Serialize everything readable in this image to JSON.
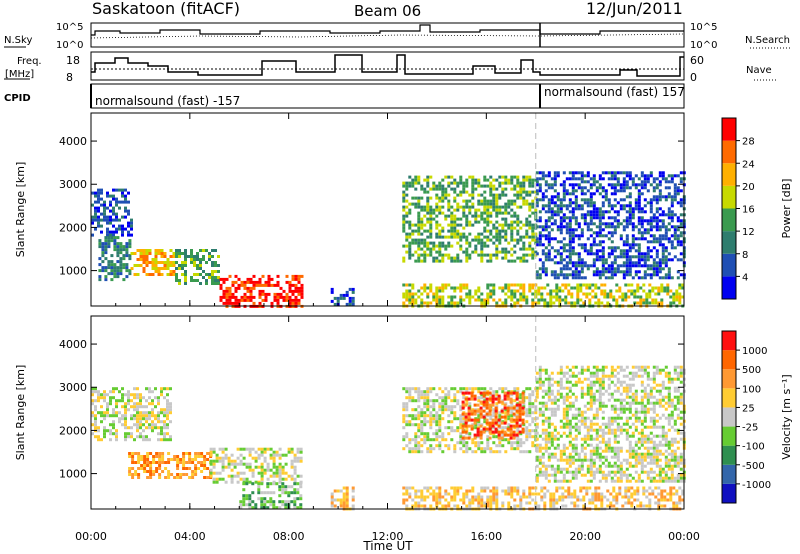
{
  "header": {
    "station": "Saskatoon (fitACF)",
    "beam": "Beam 06",
    "date": "12/Jun/2011"
  },
  "aux_panels": {
    "nsky_label": "N.Sky",
    "nsearch_label": "N.Search",
    "freq_label_line1": "Freq.",
    "freq_label_line2": "[MHz]",
    "nave_label": "Nave",
    "cpid_label": "CPID",
    "left_ticks_top": [
      "10^5",
      "10^0"
    ],
    "right_ticks_top": [
      "10^5",
      "10^0"
    ],
    "left_ticks_freq": [
      "18",
      "8"
    ],
    "right_ticks_freq": [
      "60",
      "0"
    ],
    "cpid_segments": [
      {
        "text": "normalsound (fast) -157",
        "start_hour": 0
      },
      {
        "text": "normalsound (fast) 157",
        "start_hour": 18
      }
    ]
  },
  "chart_data": [
    {
      "type": "heatmap",
      "title": "",
      "xlabel": "Time UT",
      "ylabel": "Slant Range [km]",
      "xlim": [
        0,
        24
      ],
      "ylim": [
        180,
        4650
      ],
      "x_ticks": [
        "00:00",
        "04:00",
        "08:00",
        "12:00",
        "16:00",
        "20:00",
        "00:00"
      ],
      "y_ticks": [
        1000,
        2000,
        3000,
        4000
      ],
      "colorbar": {
        "label": "Power [dB]",
        "ticks": [
          4,
          8,
          12,
          16,
          20,
          24,
          28
        ],
        "colors": [
          "#0000f0",
          "#1f4fb4",
          "#2e7d6e",
          "#3a9a4f",
          "#c7d900",
          "#ffb000",
          "#ff6a00",
          "#ff0000"
        ]
      },
      "regions": [
        {
          "t0": 0.0,
          "t1": 1.6,
          "r0": 1800,
          "r1": 2900,
          "level": 1
        },
        {
          "t0": 0.3,
          "t1": 1.6,
          "r0": 800,
          "r1": 1800,
          "level": 2
        },
        {
          "t0": 1.6,
          "t1": 3.4,
          "r0": 900,
          "r1": 1500,
          "level": 5
        },
        {
          "t0": 3.4,
          "t1": 5.2,
          "r0": 700,
          "r1": 1500,
          "level": 3
        },
        {
          "t0": 5.2,
          "t1": 8.5,
          "r0": 200,
          "r1": 900,
          "level": 7
        },
        {
          "t0": 9.7,
          "t1": 10.6,
          "r0": 200,
          "r1": 600,
          "level": 1
        },
        {
          "t0": 12.6,
          "t1": 18.0,
          "r0": 1200,
          "r1": 3200,
          "level": 3
        },
        {
          "t0": 12.6,
          "t1": 24.0,
          "r0": 200,
          "r1": 700,
          "level": 4
        },
        {
          "t0": 18.0,
          "t1": 24.0,
          "r0": 800,
          "r1": 3300,
          "level": 1
        }
      ]
    },
    {
      "type": "heatmap",
      "title": "",
      "xlabel": "Time UT",
      "ylabel": "Slant Range [km]",
      "xlim": [
        0,
        24
      ],
      "ylim": [
        180,
        4650
      ],
      "x_ticks": [
        "00:00",
        "04:00",
        "08:00",
        "12:00",
        "16:00",
        "20:00",
        "00:00"
      ],
      "y_ticks": [
        1000,
        2000,
        3000,
        4000
      ],
      "colorbar": {
        "label": "Velocity [m s⁻¹]",
        "ticks": [
          "1000",
          "500",
          "100",
          "25",
          "-25",
          "-100",
          "-500",
          "-1000"
        ],
        "colors": [
          "#1010c0",
          "#3366aa",
          "#2f8f50",
          "#66cc33",
          "#c8c8c8",
          "#ffcc33",
          "#ff9933",
          "#ff6600",
          "#ff1010"
        ]
      },
      "regions": [
        {
          "t0": 0.0,
          "t1": 3.2,
          "r0": 1800,
          "r1": 3000,
          "level": 4
        },
        {
          "t0": 1.5,
          "t1": 4.8,
          "r0": 900,
          "r1": 1500,
          "level": 6
        },
        {
          "t0": 4.8,
          "t1": 8.5,
          "r0": 800,
          "r1": 1600,
          "level": 4
        },
        {
          "t0": 6.0,
          "t1": 8.5,
          "r0": 200,
          "r1": 800,
          "level": 3
        },
        {
          "t0": 9.7,
          "t1": 10.6,
          "r0": 200,
          "r1": 700,
          "level": 5
        },
        {
          "t0": 12.6,
          "t1": 18.0,
          "r0": 1500,
          "r1": 3000,
          "level": 4
        },
        {
          "t0": 15.0,
          "t1": 17.5,
          "r0": 1800,
          "r1": 2900,
          "level": 7
        },
        {
          "t0": 12.6,
          "t1": 24.0,
          "r0": 200,
          "r1": 700,
          "level": 5
        },
        {
          "t0": 18.0,
          "t1": 24.0,
          "r0": 800,
          "r1": 3500,
          "level": 4
        }
      ]
    }
  ]
}
